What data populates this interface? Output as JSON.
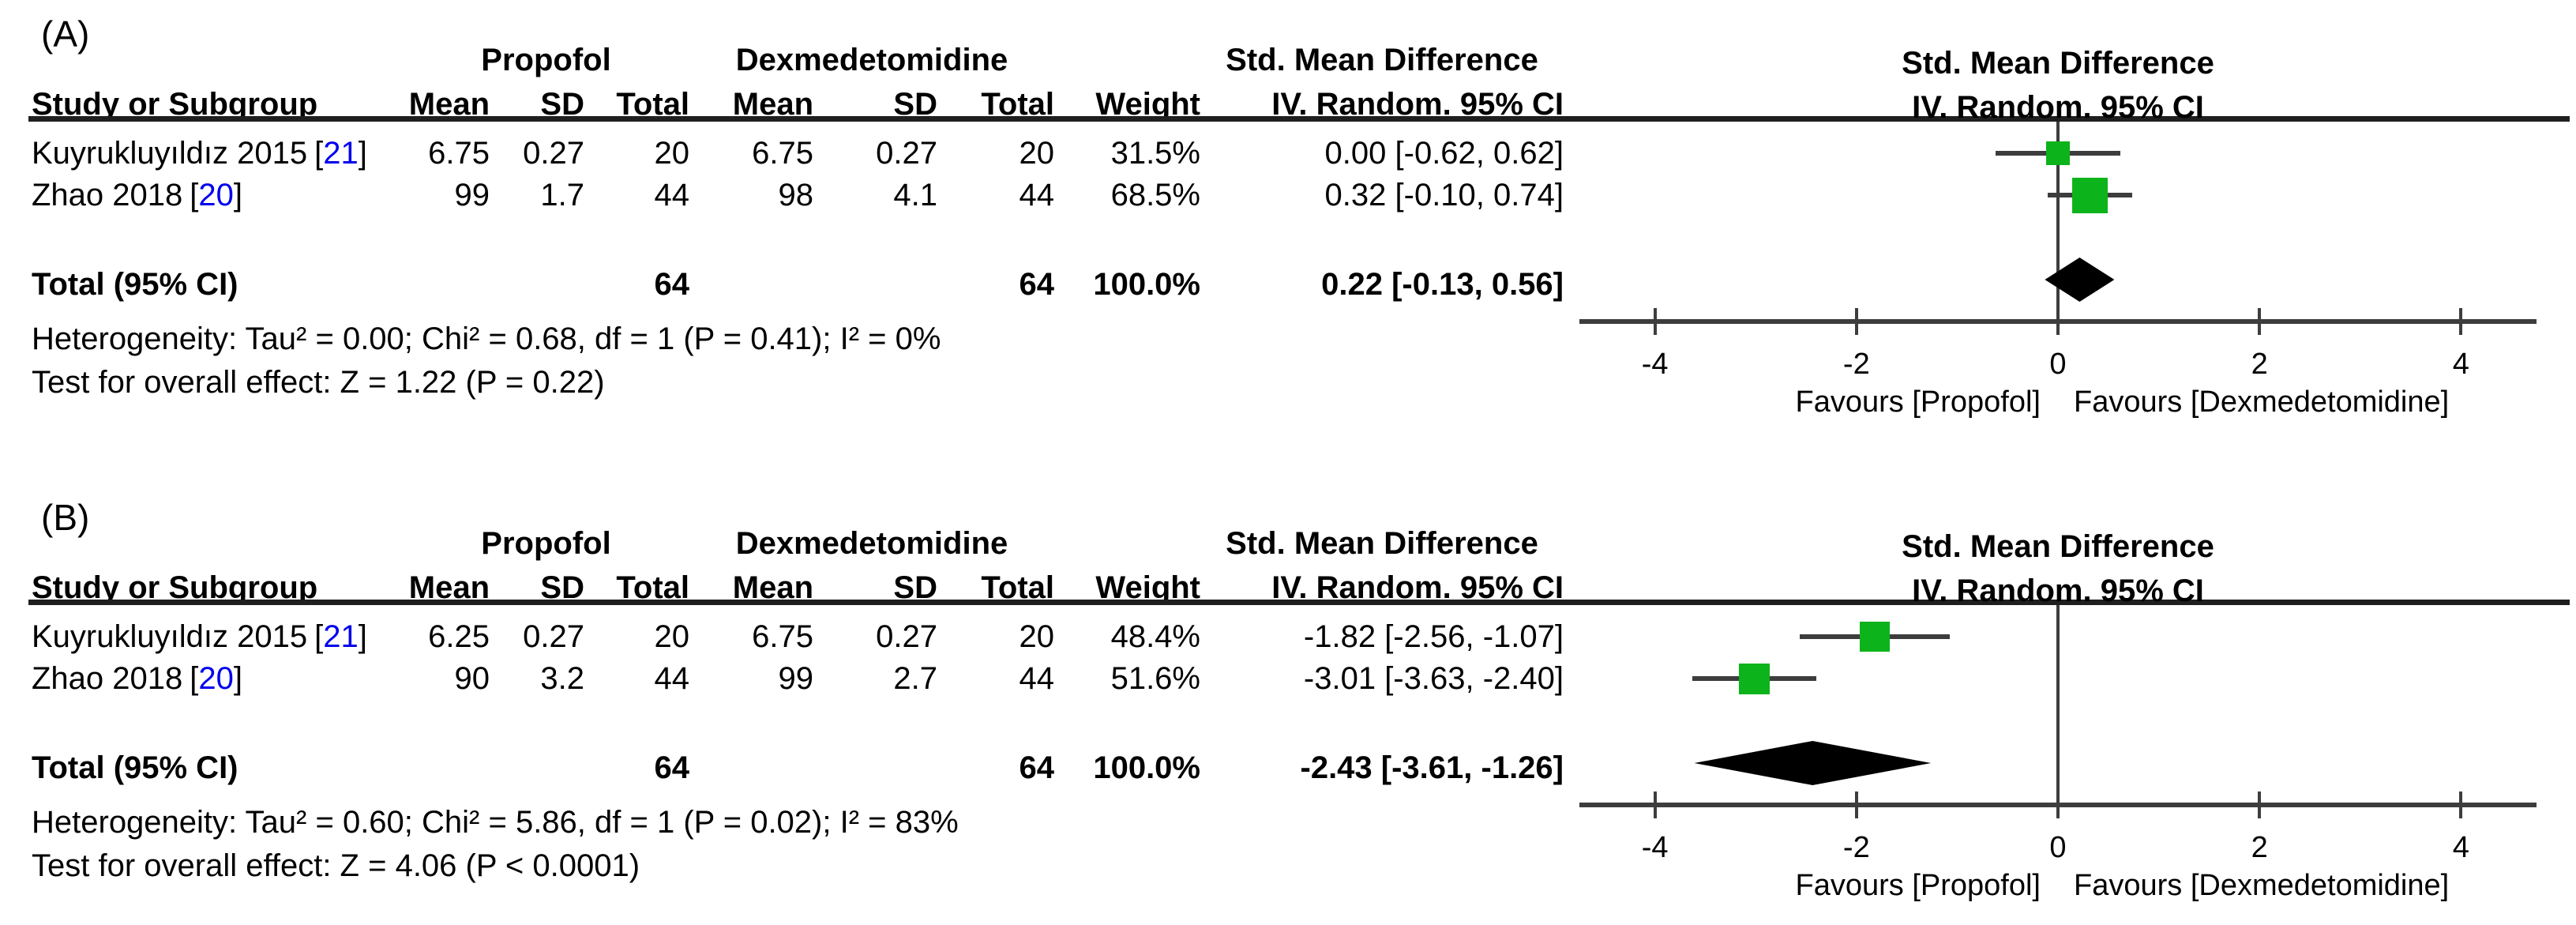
{
  "colors": {
    "square": "#0db31b",
    "diamond": "#000000",
    "line": "#3d3d3d",
    "rule": "#1f1f1f",
    "link": "#0000ee"
  },
  "chart_data": [
    {
      "type": "scatter",
      "subtype": "forest-plot",
      "panel_label": "(A)",
      "group_left": "Propofol",
      "group_right": "Dexmedetomidine",
      "effect_title": "Std. Mean Difference",
      "effect_method": "IV. Random. 95% CI",
      "col_study": "Study or Subgroup",
      "col_mean": "Mean",
      "col_sd": "SD",
      "col_total": "Total",
      "col_weight": "Weight",
      "studies": [
        {
          "name": "Kuyrukluyıldız 2015",
          "ref": "21",
          "mean1": "6.75",
          "sd1": "0.27",
          "total1": "20",
          "mean2": "6.75",
          "sd2": "0.27",
          "total2": "20",
          "weight": "31.5%",
          "weight_pct": 31.5,
          "ci_text": "0.00 [-0.62, 0.62]",
          "smd": 0.0,
          "ci_low": -0.62,
          "ci_high": 0.62
        },
        {
          "name": "Zhao 2018",
          "ref": "20",
          "mean1": "99",
          "sd1": "1.7",
          "total1": "44",
          "mean2": "98",
          "sd2": "4.1",
          "total2": "44",
          "weight": "68.5%",
          "weight_pct": 68.5,
          "ci_text": "0.32 [-0.10, 0.74]",
          "smd": 0.32,
          "ci_low": -0.1,
          "ci_high": 0.74
        }
      ],
      "total": {
        "label": "Total (95% CI)",
        "total1": "64",
        "total2": "64",
        "weight": "100.0%",
        "ci_text": "0.22 [-0.13, 0.56]",
        "smd": 0.22,
        "ci_low": -0.13,
        "ci_high": 0.56
      },
      "heterogeneity": "Heterogeneity: Tau² = 0.00; Chi² = 0.68, df = 1 (P = 0.41); I² = 0%",
      "overall_effect": "Test for overall effect: Z = 1.22 (P = 0.22)",
      "axis": {
        "min": -4.75,
        "max": 4.75,
        "ticks": [
          -4,
          -2,
          0,
          2,
          4
        ],
        "favours_left": "Favours [Propofol]",
        "favours_right": "Favours [Dexmedetomidine]"
      }
    },
    {
      "type": "scatter",
      "subtype": "forest-plot",
      "panel_label": "(B)",
      "group_left": "Propofol",
      "group_right": "Dexmedetomidine",
      "effect_title": "Std. Mean Difference",
      "effect_method": "IV. Random. 95% CI",
      "col_study": "Study or Subgroup",
      "col_mean": "Mean",
      "col_sd": "SD",
      "col_total": "Total",
      "col_weight": "Weight",
      "studies": [
        {
          "name": "Kuyrukluyıldız 2015",
          "ref": "21",
          "mean1": "6.25",
          "sd1": "0.27",
          "total1": "20",
          "mean2": "6.75",
          "sd2": "0.27",
          "total2": "20",
          "weight": "48.4%",
          "weight_pct": 48.4,
          "ci_text": "-1.82 [-2.56, -1.07]",
          "smd": -1.82,
          "ci_low": -2.56,
          "ci_high": -1.07
        },
        {
          "name": "Zhao 2018",
          "ref": "20",
          "mean1": "90",
          "sd1": "3.2",
          "total1": "44",
          "mean2": "99",
          "sd2": "2.7",
          "total2": "44",
          "weight": "51.6%",
          "weight_pct": 51.6,
          "ci_text": "-3.01 [-3.63, -2.40]",
          "smd": -3.01,
          "ci_low": -3.63,
          "ci_high": -2.4
        }
      ],
      "total": {
        "label": "Total (95% CI)",
        "total1": "64",
        "total2": "64",
        "weight": "100.0%",
        "ci_text": "-2.43 [-3.61, -1.26]",
        "smd": -2.43,
        "ci_low": -3.61,
        "ci_high": -1.26
      },
      "heterogeneity": "Heterogeneity: Tau² = 0.60; Chi² = 5.86, df = 1 (P = 0.02); I² = 83%",
      "overall_effect": "Test for overall effect: Z = 4.06 (P < 0.0001)",
      "axis": {
        "min": -4.75,
        "max": 4.75,
        "ticks": [
          -4,
          -2,
          0,
          2,
          4
        ],
        "favours_left": "Favours [Propofol]",
        "favours_right": "Favours [Dexmedetomidine]"
      }
    }
  ]
}
